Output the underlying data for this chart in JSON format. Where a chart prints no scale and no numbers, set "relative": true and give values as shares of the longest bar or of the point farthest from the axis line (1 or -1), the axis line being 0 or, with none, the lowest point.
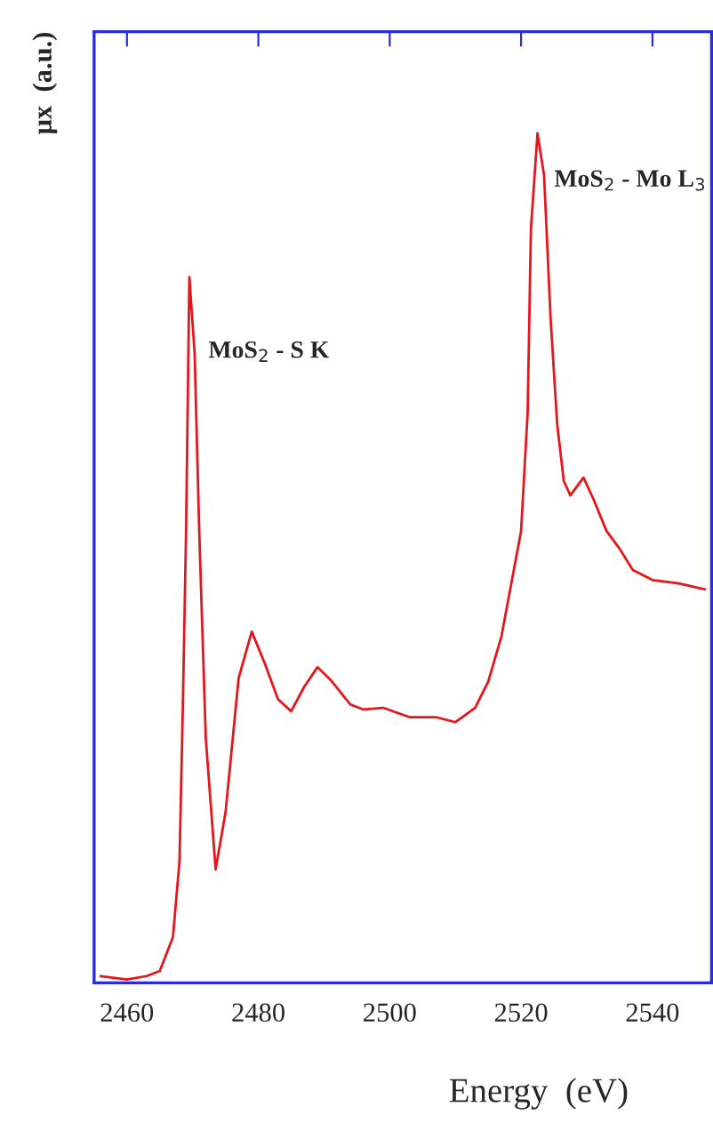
{
  "chart_data": {
    "type": "line",
    "relative": true,
    "xlabel": "Energy  (eV)",
    "ylabel": "μx  (a.u.)",
    "xlim": [
      2455,
      2549
    ],
    "xticks": [
      2460,
      2480,
      2500,
      2520,
      2540
    ],
    "grid": false,
    "legend": false,
    "marker": "none",
    "line_style": "solid",
    "annotations": [
      "MoS$_{2}$ - S K",
      "MoS$_{2}$ - Mo L$_{3}$"
    ],
    "series": [
      {
        "color": "#e8141c",
        "x": [
          2456,
          2460,
          2463,
          2465,
          2467,
          2468,
          2468.5,
          2469,
          2469.5,
          2470.3,
          2471,
          2472,
          2473.5,
          2475,
          2477,
          2479,
          2481,
          2483,
          2485,
          2487,
          2489,
          2491,
          2494,
          2496,
          2499,
          2503,
          2507,
          2510,
          2513,
          2515,
          2517,
          2519,
          2520,
          2521,
          2521.5,
          2522.5,
          2523.5,
          2524.5,
          2525.5,
          2526.5,
          2527.5,
          2529.5,
          2531,
          2533,
          2535,
          2537,
          2540,
          2544,
          2548
        ],
        "values": [
          0.004,
          0.0,
          0.004,
          0.01,
          0.05,
          0.14,
          0.32,
          0.53,
          0.83,
          0.74,
          0.53,
          0.285,
          0.13,
          0.197,
          0.356,
          0.411,
          0.373,
          0.331,
          0.317,
          0.346,
          0.369,
          0.354,
          0.325,
          0.319,
          0.321,
          0.31,
          0.31,
          0.304,
          0.321,
          0.352,
          0.405,
          0.488,
          0.53,
          0.67,
          0.887,
          1.0,
          0.95,
          0.78,
          0.656,
          0.589,
          0.572,
          0.593,
          0.568,
          0.53,
          0.509,
          0.484,
          0.472,
          0.468,
          0.461
        ]
      }
    ]
  }
}
